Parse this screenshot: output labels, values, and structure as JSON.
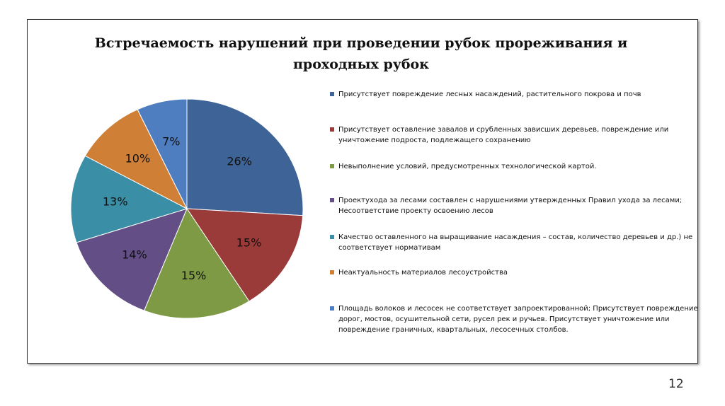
{
  "chart_data": {
    "type": "pie",
    "title": "Встречаемость нарушений  при проведении рубок прореживания и проходных рубок",
    "categories": [
      "Присутствует повреждение лесных насаждений, растительного покрова и почв",
      "Присутствует оставление завалов и срубленных зависших деревьев, повреждение или уничтожение подроста, подлежащего сохранению",
      "Невыполнение условий, предусмотренных технологической картой.",
      "Проектухода за лесами составлен с нарушениями утвержденных Правил ухода за лесами; Несоответствие проекту освоению лесов",
      "Качество оставленного на выращивание насаждения – состав, количество деревьев и др.) не соответствует нормативам",
      "Неактуальность материалов лесоустройства",
      "Площадь волоков и лесосек не соответствует запроектированной; Присутствует повреждение дорог, мостов, осушительной сети, русел рек и ручьев. Присутствует уничтожение или повреждение граничных, квартальных, лесосечных столбов."
    ],
    "values": [
      26,
      15,
      15,
      14,
      13,
      10,
      7
    ],
    "value_labels": [
      "26%",
      "15%",
      "15%",
      "14%",
      "13%",
      "10%",
      "7%"
    ],
    "colors": [
      "#3e6397",
      "#9a3b3a",
      "#7e9a45",
      "#634e86",
      "#3a8ea5",
      "#d07f36",
      "#4f7ec0"
    ],
    "legend": "right"
  },
  "page_number": "12"
}
